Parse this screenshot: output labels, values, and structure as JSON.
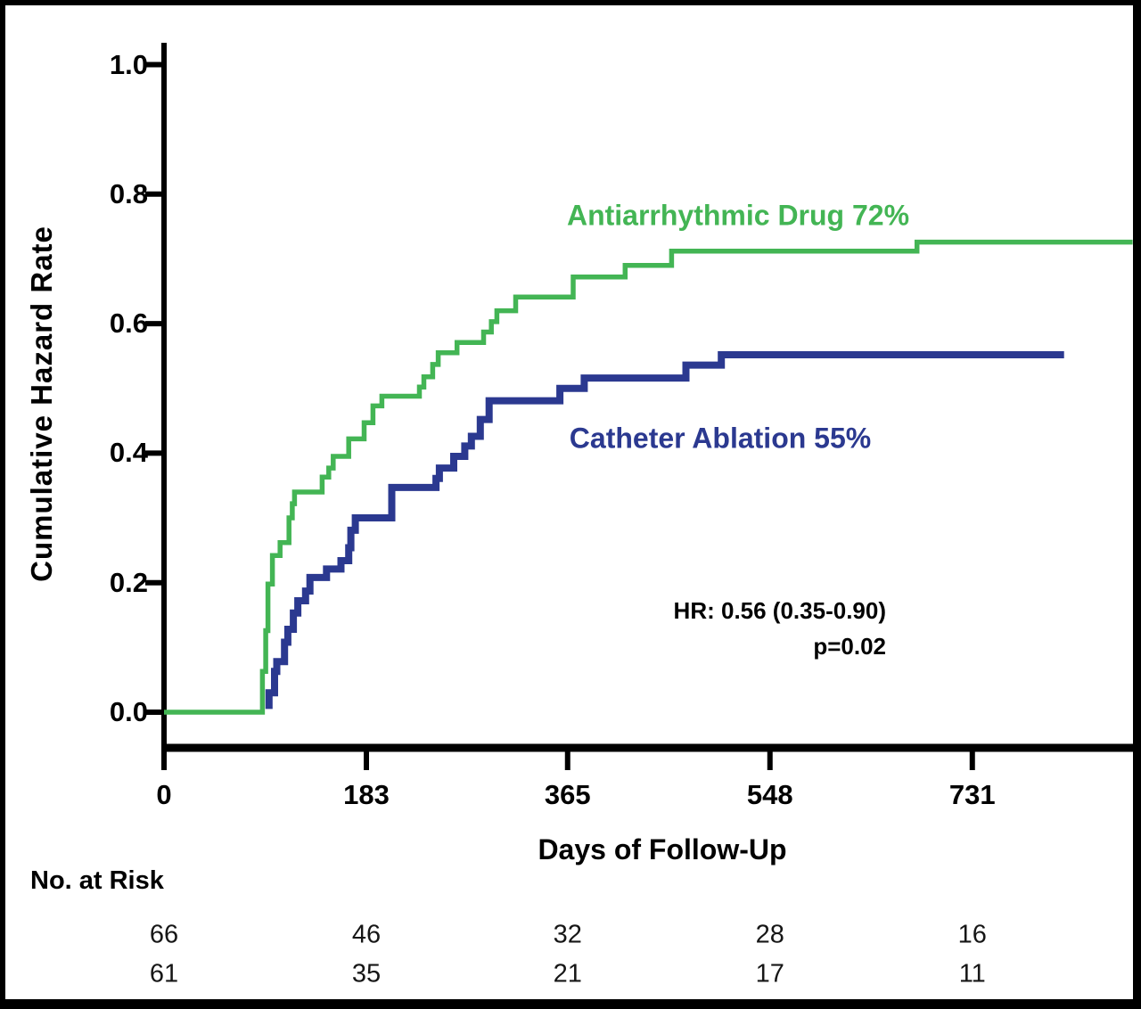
{
  "chart_data": {
    "type": "line",
    "subtype": "step",
    "title": "",
    "xlabel": "Days of Follow-Up",
    "ylabel": "Cumulative Hazard Rate",
    "xlim": [
      0,
      879
    ],
    "ylim": [
      0,
      1.0
    ],
    "xticks": [
      0,
      183,
      365,
      548,
      731
    ],
    "yticks": [
      0.0,
      0.2,
      0.4,
      0.6,
      0.8,
      1.0
    ],
    "grid": false,
    "legend_position": "inline-labels",
    "series": [
      {
        "name": "Antiarrhythmic Drug",
        "label": "Antiarrhythmic Drug 72%",
        "final_rate_pct": 72,
        "color": "#43b554",
        "points": [
          [
            0,
            0
          ],
          [
            89,
            0
          ],
          [
            89,
            0.063
          ],
          [
            92,
            0.126
          ],
          [
            94,
            0.198
          ],
          [
            98,
            0.242
          ],
          [
            105,
            0.262
          ],
          [
            113,
            0.3
          ],
          [
            116,
            0.322
          ],
          [
            118,
            0.34
          ],
          [
            143,
            0.363
          ],
          [
            149,
            0.377
          ],
          [
            153,
            0.395
          ],
          [
            167,
            0.422
          ],
          [
            181,
            0.447
          ],
          [
            189,
            0.473
          ],
          [
            197,
            0.488
          ],
          [
            231,
            0.502
          ],
          [
            235,
            0.518
          ],
          [
            243,
            0.537
          ],
          [
            248,
            0.555
          ],
          [
            265,
            0.571
          ],
          [
            289,
            0.587
          ],
          [
            296,
            0.603
          ],
          [
            301,
            0.62
          ],
          [
            318,
            0.641
          ],
          [
            370,
            0.672
          ],
          [
            417,
            0.69
          ],
          [
            459,
            0.712
          ],
          [
            681,
            0.726
          ],
          [
            876,
            0.726
          ]
        ]
      },
      {
        "name": "Catheter Ablation",
        "label": "Catheter Ablation 55%",
        "final_rate_pct": 55,
        "color": "#2b3990",
        "points": [
          [
            95,
            0.005
          ],
          [
            95,
            0.03
          ],
          [
            100,
            0.063
          ],
          [
            102,
            0.078
          ],
          [
            109,
            0.108
          ],
          [
            112,
            0.128
          ],
          [
            117,
            0.153
          ],
          [
            121,
            0.172
          ],
          [
            128,
            0.187
          ],
          [
            132,
            0.208
          ],
          [
            147,
            0.221
          ],
          [
            160,
            0.234
          ],
          [
            167,
            0.254
          ],
          [
            169,
            0.281
          ],
          [
            173,
            0.3
          ],
          [
            206,
            0.347
          ],
          [
            246,
            0.361
          ],
          [
            249,
            0.377
          ],
          [
            262,
            0.395
          ],
          [
            272,
            0.411
          ],
          [
            278,
            0.426
          ],
          [
            286,
            0.452
          ],
          [
            294,
            0.481
          ],
          [
            358,
            0.5
          ],
          [
            380,
            0.516
          ],
          [
            472,
            0.536
          ],
          [
            504,
            0.552
          ],
          [
            814,
            0.552
          ]
        ]
      }
    ],
    "annotations": {
      "hr_line": "HR: 0.56 (0.35-0.90)",
      "p_line": "p=0.02"
    }
  },
  "risk_table": {
    "label": "No. at Risk",
    "columns_days": [
      0,
      183,
      365,
      548,
      731
    ],
    "rows": [
      {
        "group": "Antiarrhythmic Drug",
        "values": [
          "66",
          "46",
          "32",
          "28",
          "16"
        ]
      },
      {
        "group": "Catheter Ablation",
        "values": [
          "61",
          "35",
          "21",
          "17",
          "11"
        ]
      }
    ]
  }
}
